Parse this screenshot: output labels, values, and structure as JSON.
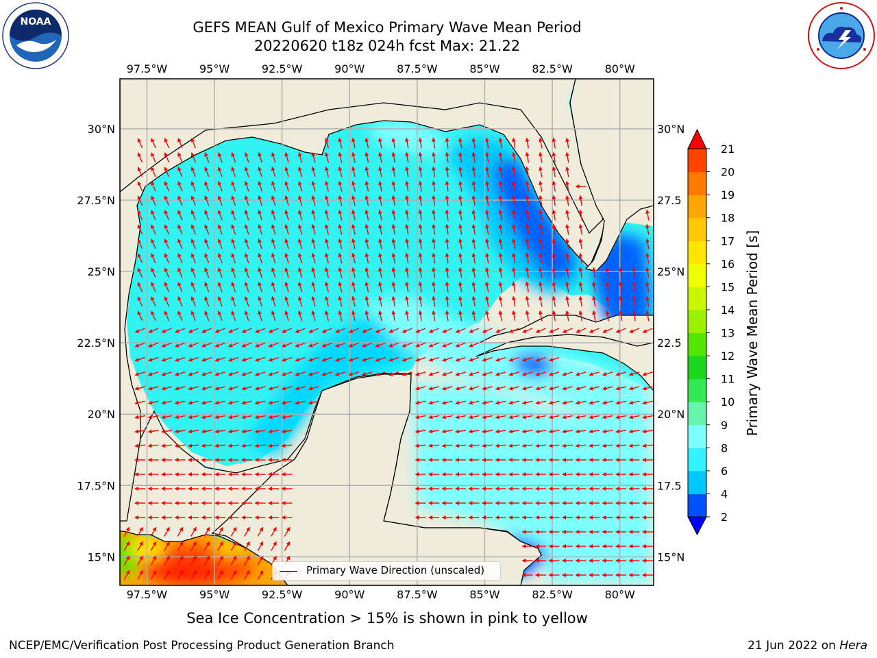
{
  "title": {
    "line1": "GEFS MEAN Gulf of Mexico Primary Wave Mean Period",
    "line2": "20220620 t18z 024h fcst   Max: 21.22"
  },
  "logos": {
    "left": {
      "icon": "noaa-logo-icon",
      "text": "NOAA",
      "ring_text": "NATIONAL OCEANIC AND ATMOSPHERIC ADMINISTRATION · U.S. DEPARTMENT OF COMMERCE"
    },
    "right": {
      "icon": "nws-logo-icon",
      "ring_text": "NATIONAL WEATHER SERVICE"
    }
  },
  "map": {
    "lon_range": [
      -98.5,
      -78.75
    ],
    "lat_range": [
      14,
      31.75
    ],
    "lon_ticks_top": [
      "97.5°W",
      "95°W",
      "92.5°W",
      "90°W",
      "87.5°W",
      "85°W",
      "82.5°W",
      "80°W"
    ],
    "lon_ticks_bottom": [
      "97.5°W",
      "95°W",
      "92.5°W",
      "90°W",
      "87.5°W",
      "85°W",
      "82.5°W",
      "80°W"
    ],
    "lat_ticks_left": [
      "15°N",
      "17.5°N",
      "20°N",
      "22.5°N",
      "25°N",
      "27.5°N",
      "30°N"
    ],
    "lat_ticks_right": [
      "15°N",
      "17.5",
      "20°N",
      "22.5",
      "25°N",
      "27.5",
      "30°N"
    ],
    "grid": true,
    "colors": {
      "land": "#efecdc",
      "ocean_base": "#33f2f2",
      "arrow": "#ff0000"
    }
  },
  "legend": {
    "label": "Primary Wave Direction (unscaled)",
    "placement": "bottom-center"
  },
  "colorbar": {
    "label": "Primary Wave Mean Period [s]",
    "ticks": [
      "2",
      "4",
      "6",
      "8",
      "9",
      "10",
      "11",
      "12",
      "13",
      "14",
      "15",
      "16",
      "17",
      "18",
      "19",
      "20",
      "21"
    ],
    "colors": [
      "#0050ff",
      "#00c8ff",
      "#33f2ff",
      "#80ffff",
      "#66f5aa",
      "#33e855",
      "#1bd61b",
      "#55e600",
      "#9af000",
      "#c8f700",
      "#f0ff00",
      "#ffe600",
      "#ffc800",
      "#ffa500",
      "#ff7800",
      "#ff4500"
    ],
    "under_color": "#0000ff",
    "over_color": "#ff0000",
    "extend": "both"
  },
  "subtitle": "Sea Ice Concentration > 15% is shown in pink to yellow",
  "footer": {
    "left": "NCEP/EMC/Verification Post Processing Product Generation Branch",
    "right_date": "21 Jun 2022 on ",
    "right_host": "Hera"
  }
}
